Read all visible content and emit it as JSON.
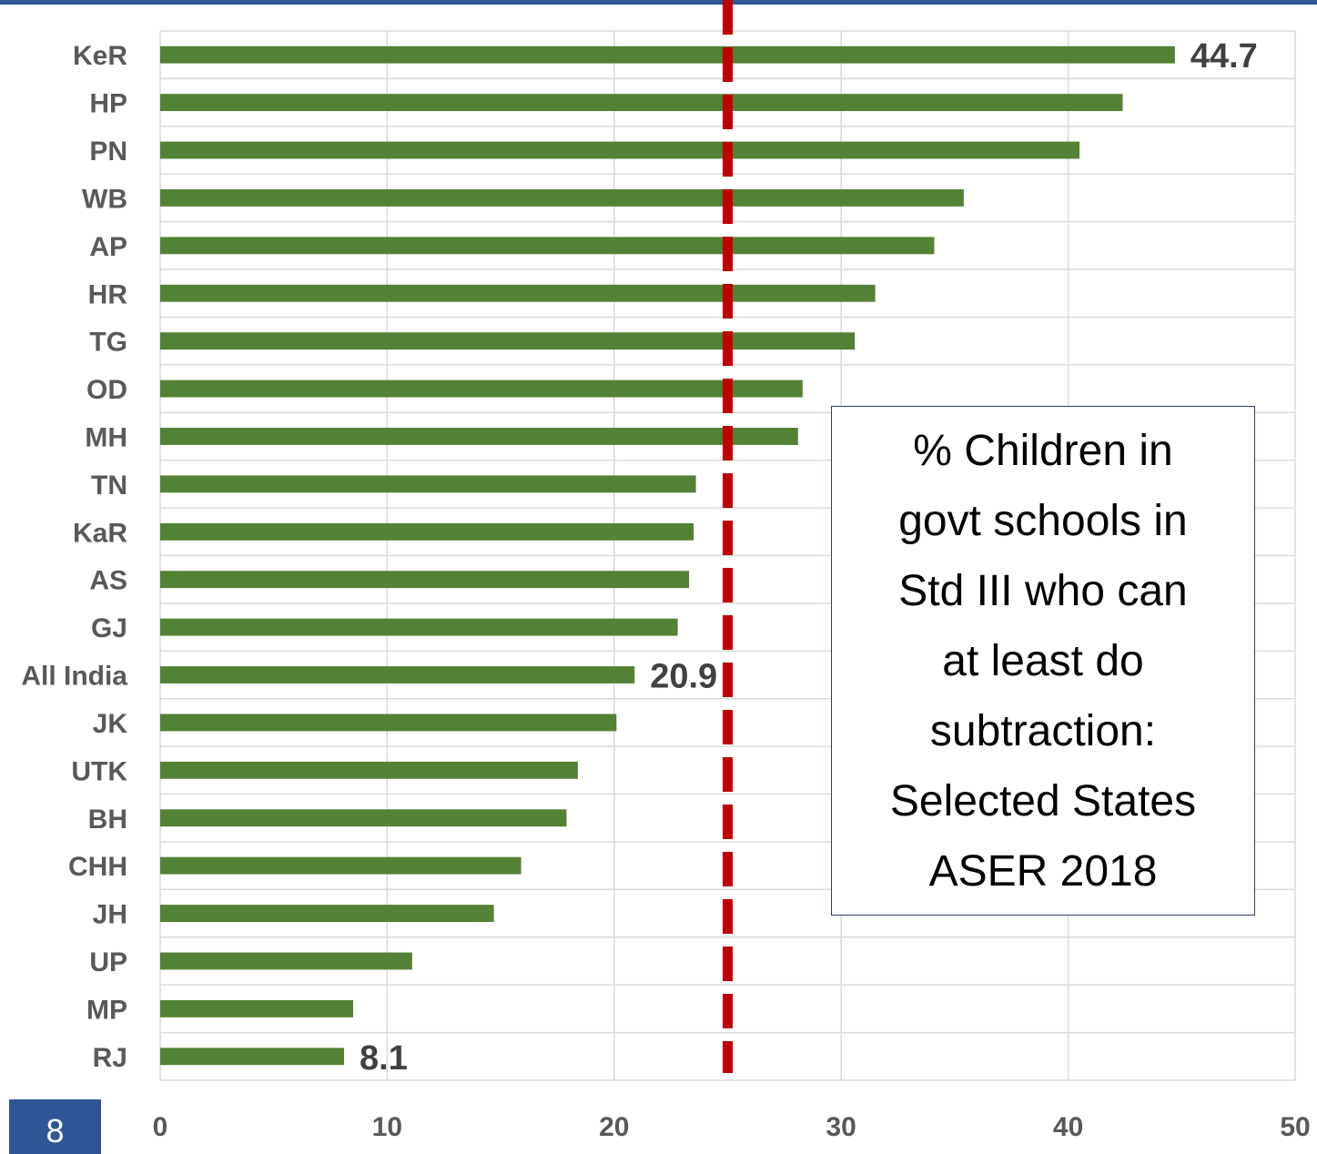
{
  "colors": {
    "bar": "#538135",
    "reference_line": "#C00000",
    "grid": "#D9D9D9",
    "top_rule": "#2F5597",
    "slide_badge": "#2F5597"
  },
  "slide_number": "8",
  "chart_data": {
    "type": "bar",
    "orientation": "horizontal",
    "title": "% Children in govt schools in Std III who can at least do subtraction: Selected States ASER 2018",
    "title_lines": [
      "% Children in",
      "govt schools in",
      "Std III who can",
      "at least do",
      "subtraction:",
      "Selected States",
      "ASER 2018"
    ],
    "categories": [
      "KeR",
      "HP",
      "PN",
      "WB",
      "AP",
      "HR",
      "TG",
      "OD",
      "MH",
      "TN",
      "KaR",
      "AS",
      "GJ",
      "All India",
      "JK",
      "UTK",
      "BH",
      "CHH",
      "JH",
      "UP",
      "MP",
      "RJ"
    ],
    "values": [
      44.7,
      42.4,
      40.5,
      35.4,
      34.1,
      31.5,
      30.6,
      28.3,
      28.1,
      23.6,
      23.5,
      23.3,
      22.8,
      20.9,
      20.1,
      18.4,
      17.9,
      15.9,
      14.7,
      11.1,
      8.5,
      8.1
    ],
    "data_labels": [
      {
        "category": "KeR",
        "text": "44.7"
      },
      {
        "category": "All India",
        "text": "20.9"
      },
      {
        "category": "RJ",
        "text": "8.1"
      }
    ],
    "xlim": [
      0,
      50
    ],
    "x_ticks": [
      0,
      10,
      20,
      30,
      40,
      50
    ],
    "reference_line": {
      "x": 25,
      "style": "dashed"
    },
    "grid": true,
    "legend": "none",
    "xlabel": "",
    "ylabel": ""
  }
}
